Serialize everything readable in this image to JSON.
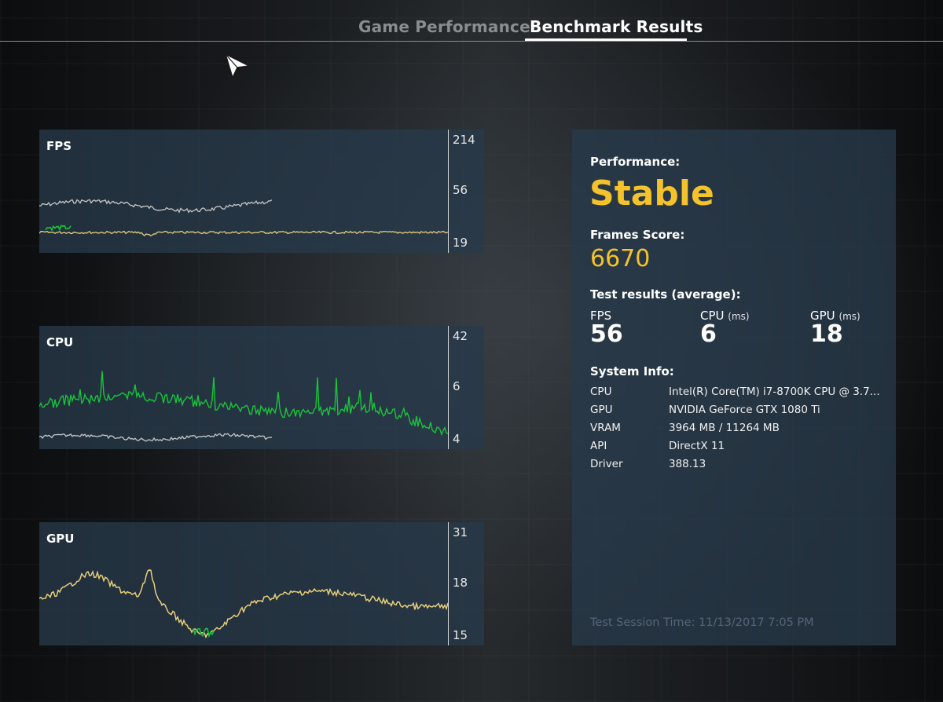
{
  "tabs": {
    "game_performance": "Game Performance",
    "benchmark_results": "Benchmark Results"
  },
  "graphs": {
    "fps": {
      "label": "FPS",
      "ticks": [
        "214",
        "56",
        "19"
      ]
    },
    "cpu": {
      "label": "CPU",
      "ticks": [
        "42",
        "6",
        "4"
      ]
    },
    "gpu": {
      "label": "GPU",
      "ticks": [
        "31",
        "18",
        "15"
      ]
    }
  },
  "colors": {
    "accent_yellow": "#f4c22a",
    "line_green": "#19c43a",
    "line_gray": "#c8c8c8",
    "line_yellow": "#e6cf7a"
  },
  "results": {
    "performance_label": "Performance:",
    "performance_value": "Stable",
    "frames_score_label": "Frames Score:",
    "frames_score_value": "6670",
    "test_results_label": "Test results (average):",
    "fps_label": "FPS",
    "fps_value": "56",
    "cpu_label": "CPU",
    "cpu_unit": "(ms)",
    "cpu_value": "6",
    "gpu_label": "GPU",
    "gpu_unit": "(ms)",
    "gpu_value": "18",
    "system_info_label": "System Info:",
    "system": [
      {
        "key": "CPU",
        "value": "Intel(R) Core(TM) i7-8700K CPU @ 3.7..."
      },
      {
        "key": "GPU",
        "value": "NVIDIA GeForce GTX 1080 Ti"
      },
      {
        "key": "VRAM",
        "value": "3964 MB / 11264 MB"
      },
      {
        "key": "API",
        "value": "DirectX 11"
      },
      {
        "key": "Driver",
        "value": "388.13"
      }
    ],
    "session_time": "Test Session Time: 11/13/2017 7:05 PM"
  }
}
